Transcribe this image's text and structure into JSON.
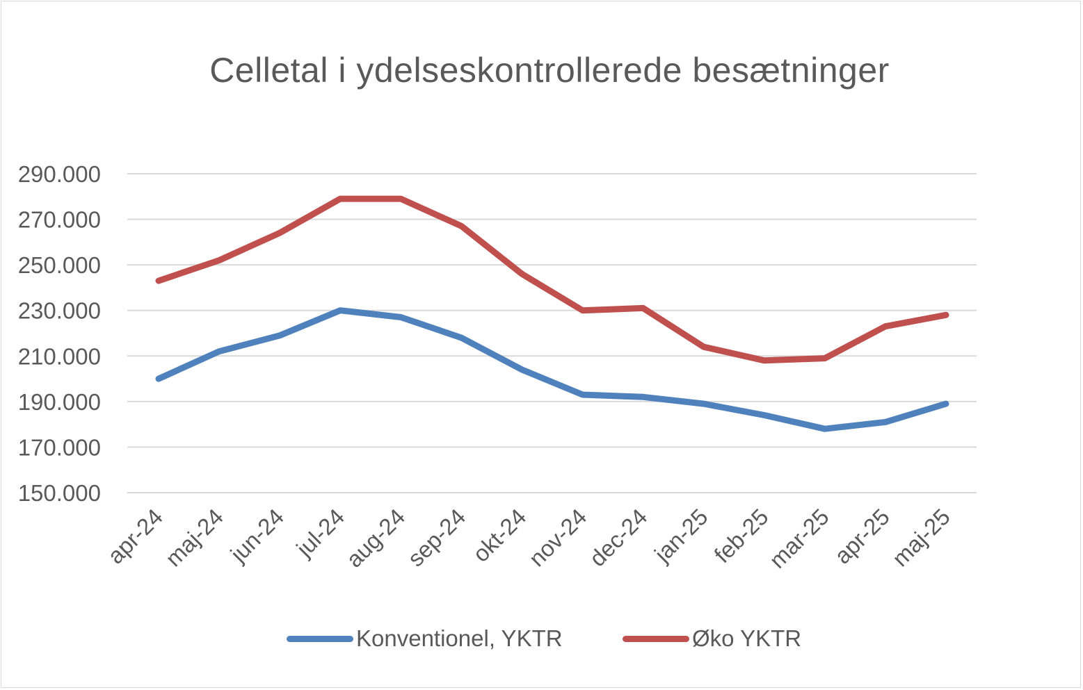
{
  "chart_data": {
    "type": "line",
    "title": "Celletal i ydelseskontrollerede besætninger",
    "xlabel": "",
    "ylabel": "",
    "categories": [
      "apr-24",
      "maj-24",
      "jun-24",
      "jul-24",
      "aug-24",
      "sep-24",
      "okt-24",
      "nov-24",
      "dec-24",
      "jan-25",
      "feb-25",
      "mar-25",
      "apr-25",
      "maj-25"
    ],
    "ylim": [
      150000,
      290000
    ],
    "yticks": [
      "150.000",
      "170.000",
      "190.000",
      "210.000",
      "230.000",
      "250.000",
      "270.000",
      "290.000"
    ],
    "grid": true,
    "legend_position": "bottom",
    "series": [
      {
        "name": "Konventionel, YKTR",
        "color": "#4f81bd",
        "values": [
          200000,
          212000,
          219000,
          230000,
          227000,
          218000,
          204000,
          193000,
          192000,
          189000,
          184000,
          178000,
          181000,
          189000
        ]
      },
      {
        "name": "Øko YKTR",
        "color": "#c0504d",
        "values": [
          243000,
          252000,
          264000,
          279000,
          279000,
          267000,
          246000,
          230000,
          231000,
          214000,
          208000,
          209000,
          223000,
          228000
        ]
      }
    ]
  }
}
